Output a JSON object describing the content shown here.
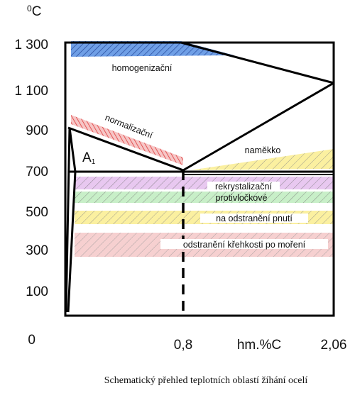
{
  "y_unit": {
    "sup": "0",
    "text": "C"
  },
  "y_labels": [
    "1 300",
    "1 100",
    "900",
    "700",
    "500",
    "300",
    "100",
    "0"
  ],
  "x_labels": [
    "0,8",
    "hm.%C",
    "2,06"
  ],
  "a1": {
    "text": "A",
    "sub": "1"
  },
  "regions": [
    "homogenizační",
    "normalizační",
    "naměkko",
    "rekrystalizační",
    "protivločkové",
    "na odstranění pnutí",
    "odstranění křehkosti po moření"
  ],
  "caption": "Schematický přehled teplotních oblastí žíhání ocelí"
}
